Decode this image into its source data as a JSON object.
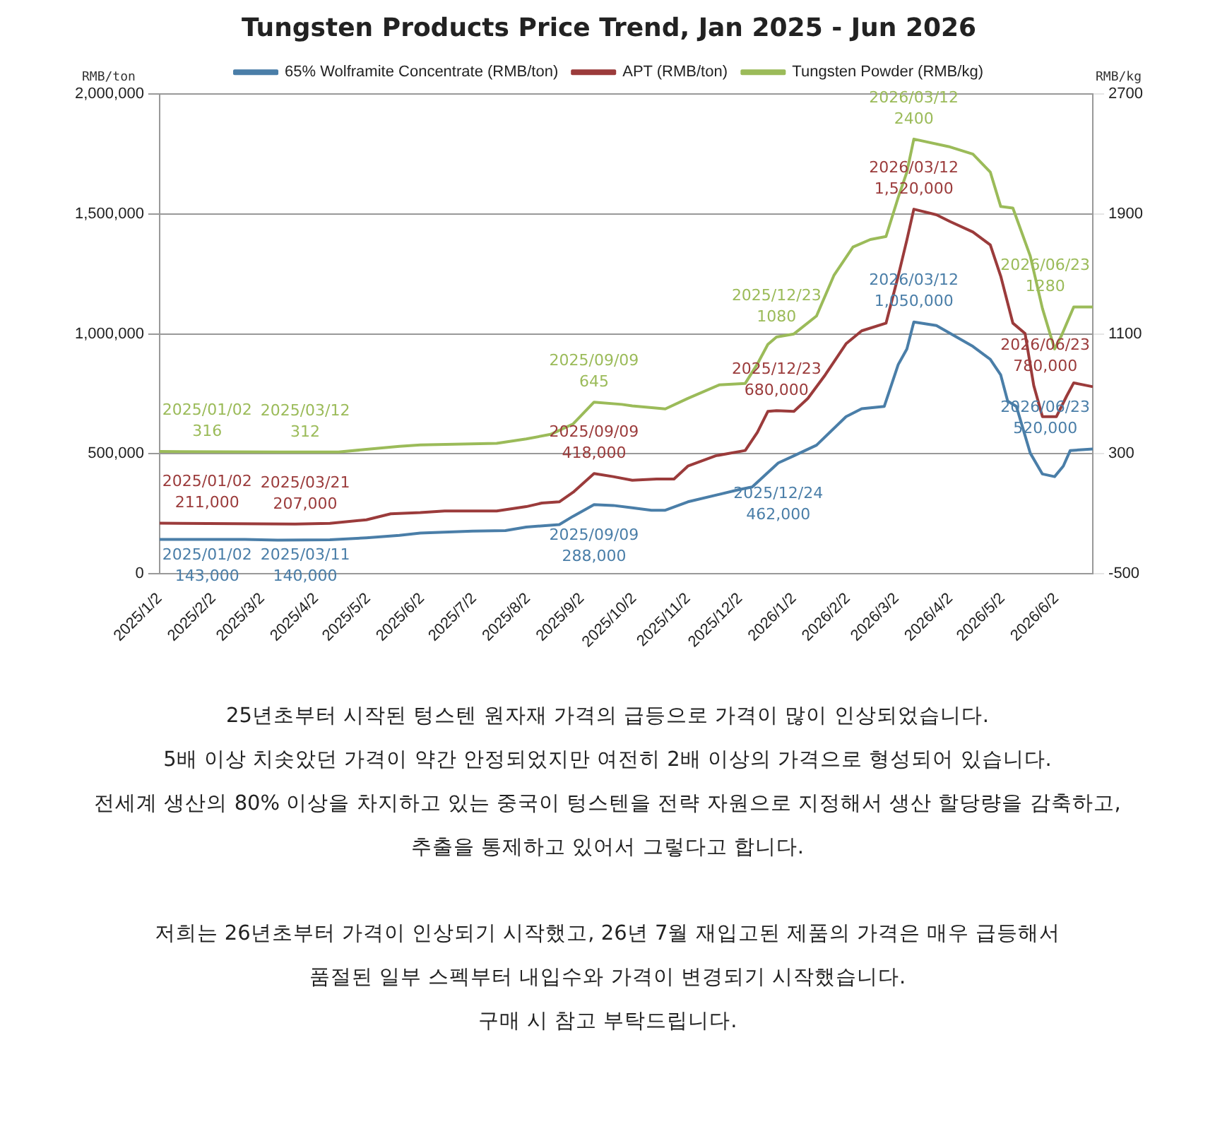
{
  "chart_data": {
    "type": "line",
    "title": "Tungsten Products Price Trend, Jan 2025 - Jun 2026",
    "ylabel": "RMB/ton",
    "y2label": "RMB/kg",
    "xlim": [
      "2025-01-02",
      "2026-06-23"
    ],
    "xticks": [
      {
        "value": "2025-01-02",
        "label": "2025/1/2"
      },
      {
        "value": "2025-02-02",
        "label": "2025/2/2"
      },
      {
        "value": "2025-03-02",
        "label": "2025/3/2"
      },
      {
        "value": "2025-04-02",
        "label": "2025/4/2"
      },
      {
        "value": "2025-05-02",
        "label": "2025/5/2"
      },
      {
        "value": "2025-06-02",
        "label": "2025/6/2"
      },
      {
        "value": "2025-07-02",
        "label": "2025/7/2"
      },
      {
        "value": "2025-08-02",
        "label": "2025/8/2"
      },
      {
        "value": "2025-09-02",
        "label": "2025/9/2"
      },
      {
        "value": "2025-10-02",
        "label": "2025/10/2"
      },
      {
        "value": "2025-11-02",
        "label": "2025/11/2"
      },
      {
        "value": "2025-12-02",
        "label": "2025/12/2"
      },
      {
        "value": "2026-01-02",
        "label": "2026/1/2"
      },
      {
        "value": "2026-02-02",
        "label": "2026/2/2"
      },
      {
        "value": "2026-03-02",
        "label": "2026/3/2"
      },
      {
        "value": "2026-04-02",
        "label": "2026/4/2"
      },
      {
        "value": "2026-05-02",
        "label": "2026/5/2"
      },
      {
        "value": "2026-06-02",
        "label": "2026/6/2"
      }
    ],
    "ylim": [
      0,
      2000000
    ],
    "yticks": [
      {
        "value": 0,
        "label": "0"
      },
      {
        "value": 500000,
        "label": "500,000"
      },
      {
        "value": 1000000,
        "label": "1,000,000"
      },
      {
        "value": 1500000,
        "label": "1,500,000"
      },
      {
        "value": 2000000,
        "label": "2,000,000"
      }
    ],
    "y2lim": [
      -500,
      2700
    ],
    "y2ticks": [
      -500,
      300,
      1100,
      1900,
      2700
    ],
    "grid": "y",
    "legend": "top",
    "marker": "none",
    "line_style": "solid",
    "series": [
      {
        "name": "65% Wolframite Concentrate (RMB/ton)",
        "color": "#4a7ea8",
        "x": [
          "2025-01-02",
          "2025-02-20",
          "2025-03-11",
          "2025-04-10",
          "2025-05-01",
          "2025-05-20",
          "2025-06-01",
          "2025-07-01",
          "2025-07-20",
          "2025-08-01",
          "2025-08-20",
          "2025-08-28",
          "2025-09-09",
          "2025-09-20",
          "2025-10-01",
          "2025-10-12",
          "2025-10-20",
          "2025-11-02",
          "2025-12-01",
          "2025-12-09",
          "2025-12-24",
          "2026-01-02",
          "2026-01-15",
          "2026-02-01",
          "2026-02-10",
          "2026-02-23",
          "2026-03-03",
          "2026-03-08",
          "2026-03-12",
          "2026-03-25",
          "2026-04-02",
          "2026-04-15",
          "2026-04-25",
          "2026-05-01",
          "2026-05-05",
          "2026-05-10",
          "2026-05-18",
          "2026-05-25",
          "2026-06-01",
          "2026-06-06",
          "2026-06-10",
          "2026-06-23"
        ],
        "values": [
          143000,
          143000,
          140000,
          142000,
          150000,
          160000,
          170000,
          178000,
          180000,
          195000,
          205000,
          240000,
          288000,
          285000,
          275000,
          265000,
          265000,
          300000,
          350000,
          362000,
          462000,
          492000,
          536000,
          655000,
          688000,
          698000,
          872000,
          937000,
          1050000,
          1035000,
          1002000,
          948000,
          894000,
          829000,
          720000,
          698000,
          503000,
          416000,
          405000,
          449000,
          514000,
          520000
        ],
        "value_labels": [
          "2025/01/02\n143,000",
          null,
          "2025/03/11\n140,000",
          null,
          null,
          null,
          null,
          null,
          null,
          null,
          null,
          null,
          "2025/09/09\n288,000",
          null,
          null,
          null,
          null,
          null,
          null,
          null,
          "2025/12/24\n462,000",
          null,
          null,
          null,
          null,
          null,
          null,
          null,
          "2026/03/12\n1,050,000",
          null,
          null,
          null,
          null,
          null,
          null,
          null,
          null,
          null,
          null,
          null,
          null,
          "2026/06/23\n520,000"
        ]
      },
      {
        "name": "APT (RMB/ton)",
        "color": "#9b3b3b",
        "x": [
          "2025-01-02",
          "2025-03-21",
          "2025-04-10",
          "2025-05-01",
          "2025-05-15",
          "2025-06-01",
          "2025-06-15",
          "2025-07-15",
          "2025-08-01",
          "2025-08-10",
          "2025-08-20",
          "2025-08-28",
          "2025-09-09",
          "2025-09-20",
          "2025-10-01",
          "2025-10-15",
          "2025-10-25",
          "2025-11-02",
          "2025-11-18",
          "2025-12-05",
          "2025-12-12",
          "2025-12-18",
          "2025-12-23",
          "2026-01-02",
          "2026-01-10",
          "2026-01-20",
          "2026-02-01",
          "2026-02-10",
          "2026-02-24",
          "2026-03-03",
          "2026-03-08",
          "2026-03-12",
          "2026-03-25",
          "2026-04-02",
          "2026-04-15",
          "2026-04-25",
          "2026-05-01",
          "2026-05-08",
          "2026-05-15",
          "2026-05-20",
          "2026-05-25",
          "2026-06-02",
          "2026-06-08",
          "2026-06-12",
          "2026-06-23"
        ],
        "values": [
          211000,
          207000,
          210000,
          225000,
          250000,
          255000,
          262000,
          262000,
          280000,
          295000,
          300000,
          340000,
          418000,
          405000,
          390000,
          395000,
          395000,
          449000,
          492000,
          514000,
          590000,
          677000,
          680000,
          677000,
          731000,
          829000,
          959000,
          1013000,
          1045000,
          1241000,
          1392000,
          1520000,
          1497000,
          1468000,
          1425000,
          1371000,
          1241000,
          1045000,
          1002000,
          785000,
          655000,
          655000,
          742000,
          796000,
          780000
        ],
        "value_labels": [
          "2025/01/02\n211,000",
          "2025/03/21\n207,000",
          null,
          null,
          null,
          null,
          null,
          null,
          null,
          null,
          null,
          null,
          "2025/09/09\n418,000",
          null,
          null,
          null,
          null,
          null,
          null,
          null,
          null,
          null,
          "2025/12/23\n680,000",
          null,
          null,
          null,
          null,
          null,
          null,
          null,
          null,
          "2026/03/12\n1,520,000",
          null,
          null,
          null,
          null,
          null,
          null,
          null,
          null,
          null,
          null,
          null,
          null,
          "2026/06/23\n780,000"
        ]
      },
      {
        "name": "Tungsten Powder (RMB/kg)",
        "color": "#9bbb59",
        "axis": "y2",
        "x": [
          "2025-01-02",
          "2025-03-12",
          "2025-04-15",
          "2025-05-01",
          "2025-05-20",
          "2025-06-01",
          "2025-07-15",
          "2025-08-01",
          "2025-08-15",
          "2025-08-28",
          "2025-09-09",
          "2025-09-25",
          "2025-10-01",
          "2025-10-20",
          "2025-11-02",
          "2025-11-20",
          "2025-12-05",
          "2025-12-12",
          "2025-12-18",
          "2025-12-23",
          "2026-01-02",
          "2026-01-15",
          "2026-01-25",
          "2026-02-05",
          "2026-02-15",
          "2026-02-24",
          "2026-03-03",
          "2026-03-08",
          "2026-03-12",
          "2026-04-01",
          "2026-04-15",
          "2026-04-25",
          "2026-05-01",
          "2026-05-08",
          "2026-05-18",
          "2026-05-25",
          "2026-06-01",
          "2026-06-05",
          "2026-06-12",
          "2026-06-23"
        ],
        "values": [
          316,
          312,
          312,
          330,
          350,
          360,
          370,
          400,
          430,
          500,
          645,
          630,
          620,
          600,
          670,
          760,
          770,
          900,
          1030,
          1080,
          1100,
          1220,
          1490,
          1680,
          1730,
          1750,
          2010,
          2180,
          2400,
          2350,
          2300,
          2180,
          1950,
          1940,
          1620,
          1270,
          1000,
          1090,
          1280,
          1280
        ],
        "value_labels": [
          "2025/01/02\n316",
          "2025/03/12\n312",
          null,
          null,
          null,
          null,
          null,
          null,
          null,
          null,
          "2025/09/09\n645",
          null,
          null,
          null,
          null,
          null,
          null,
          null,
          null,
          "2025/12/23\n1080",
          null,
          null,
          null,
          null,
          null,
          null,
          null,
          null,
          "2026/03/12\n2400",
          null,
          null,
          null,
          null,
          null,
          null,
          null,
          null,
          null,
          null,
          "2026/06/23\n1280"
        ]
      }
    ],
    "annotations": [
      "25년초부터 시작된 텅스텐 원자재 가격의 급등으로 가격이 많이 인상되었습니다.\n5배 이상 치솟았던 가격이 약간 안정되었지만 여전히 2배 이상의 가격으로 형성되어 있습니다.\n전세계 생산의 80% 이상을 차지하고 있는 중국이 텅스텐을 전략 자원으로 지정해서 생산 할당량을 감축하고,\n추출을 통제하고 있어서 그렇다고 합니다.",
      "저희는 26년초부터 가격이 인상되기 시작했고, 26년 7월 재입고된 제품의 가격은 매우 급등해서\n품절된 일부 스펙부터 내입수와 가격이 변경되기 시작했습니다.\n구매 시 참고 부탁드립니다."
    ]
  }
}
